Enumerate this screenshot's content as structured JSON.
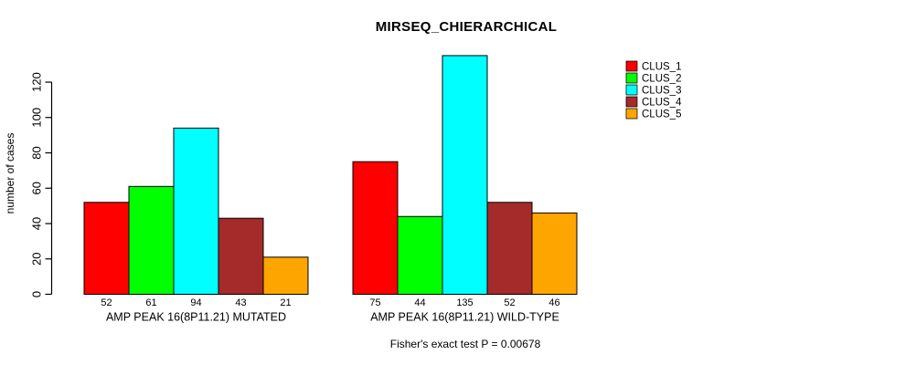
{
  "chart_data": {
    "type": "bar",
    "title": "MIRSEQ_CHIERARCHICAL",
    "ylabel": "number of cases",
    "xlabel": "",
    "yticks": [
      0,
      20,
      40,
      60,
      80,
      100,
      120
    ],
    "ylim": [
      0,
      135
    ],
    "grid": false,
    "show_bar_values": true,
    "legend_position": "right",
    "categories": [
      "AMP PEAK 16(8P11.21) MUTATED",
      "AMP PEAK 16(8P11.21) WILD-TYPE"
    ],
    "series": [
      {
        "name": "CLUS_1",
        "color": "#ff0000",
        "values": [
          52,
          75
        ]
      },
      {
        "name": "CLUS_2",
        "color": "#00ff00",
        "values": [
          61,
          44
        ]
      },
      {
        "name": "CLUS_3",
        "color": "#00ffff",
        "values": [
          94,
          135
        ]
      },
      {
        "name": "CLUS_4",
        "color": "#a52a2a",
        "values": [
          43,
          52
        ]
      },
      {
        "name": "CLUS_5",
        "color": "#ffa500",
        "values": [
          21,
          46
        ]
      }
    ],
    "annotation": "Fisher's exact test P = 0.00678"
  },
  "colors": {
    "background": "#ffffff",
    "axis": "#000000",
    "text": "#000000"
  }
}
